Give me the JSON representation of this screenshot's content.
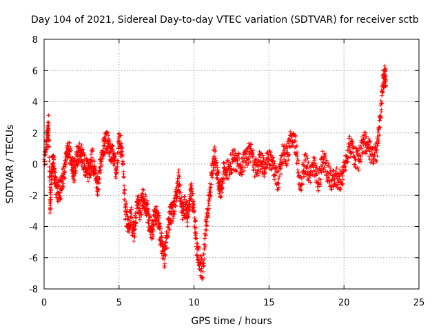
{
  "chart_data": {
    "type": "scatter",
    "title": "Day 104 of 2021, Sidereal Day-to-day VTEC variation (SDTVAR) for receiver sctb",
    "xlabel": "GPS time / hours",
    "ylabel": "SDTVAR / TECUs",
    "xlim": [
      0,
      25
    ],
    "ylim": [
      -8,
      8
    ],
    "xticks": [
      0,
      5,
      10,
      15,
      20,
      25
    ],
    "yticks": [
      -8,
      -6,
      -4,
      -2,
      0,
      2,
      4,
      6,
      8
    ],
    "grid": true,
    "marker": "+",
    "color": "#ff0000",
    "series": [
      {
        "name": "SDTVAR",
        "x": [
          0.0,
          0.2,
          0.3,
          0.4,
          0.5,
          0.6,
          0.7,
          0.9,
          1.1,
          1.3,
          1.5,
          1.7,
          1.9,
          2.0,
          2.2,
          2.4,
          2.6,
          2.8,
          3.0,
          3.2,
          3.4,
          3.6,
          3.8,
          4.0,
          4.2,
          4.4,
          4.6,
          4.8,
          5.0,
          5.2,
          5.4,
          5.6,
          5.8,
          6.0,
          6.2,
          6.4,
          6.6,
          6.8,
          7.0,
          7.2,
          7.4,
          7.6,
          7.8,
          8.0,
          8.2,
          8.4,
          8.6,
          8.8,
          9.0,
          9.2,
          9.4,
          9.6,
          9.8,
          10.0,
          10.2,
          10.4,
          10.6,
          10.8,
          11.0,
          11.2,
          11.4,
          11.6,
          11.8,
          12.0,
          12.3,
          12.6,
          12.9,
          13.2,
          13.5,
          13.8,
          14.1,
          14.4,
          14.7,
          15.0,
          15.3,
          15.6,
          15.9,
          16.2,
          16.5,
          16.8,
          17.1,
          17.4,
          17.7,
          18.0,
          18.3,
          18.6,
          18.9,
          19.2,
          19.5,
          19.8,
          20.1,
          20.4,
          20.7,
          21.0,
          21.3,
          21.6,
          21.9,
          22.2,
          22.4,
          22.6,
          22.7,
          22.8
        ],
        "y": [
          0.3,
          1.5,
          2.5,
          -2.8,
          -0.5,
          0.4,
          -0.9,
          -1.8,
          -1.6,
          -0.8,
          0.6,
          0.8,
          -0.2,
          -0.5,
          0.5,
          0.9,
          0.2,
          -0.3,
          -0.6,
          0.4,
          -0.4,
          -1.6,
          0.3,
          1.2,
          1.5,
          0.8,
          0.6,
          -0.3,
          1.5,
          0.8,
          -2.8,
          -3.8,
          -3.4,
          -4.6,
          -2.4,
          -3.0,
          -2.2,
          -2.6,
          -3.6,
          -4.4,
          -3.1,
          -3.6,
          -4.9,
          -6.1,
          -4.7,
          -3.2,
          -3.0,
          -2.0,
          -0.9,
          -3.1,
          -2.6,
          -3.4,
          -1.6,
          -3.1,
          -5.4,
          -6.4,
          -6.9,
          -3.9,
          -2.3,
          -0.6,
          0.8,
          -1.0,
          -1.6,
          -0.2,
          -0.3,
          0.3,
          0.2,
          -0.2,
          0.4,
          0.9,
          -0.4,
          0.2,
          -0.3,
          0.3,
          -0.1,
          -1.2,
          0.6,
          0.5,
          1.8,
          1.1,
          -1.6,
          0.2,
          -0.6,
          -0.1,
          -1.2,
          0.4,
          -0.5,
          -1.1,
          -0.8,
          -1.1,
          0.1,
          1.2,
          0.5,
          0.2,
          1.6,
          1.1,
          0.6,
          0.9,
          2.8,
          5.2,
          5.7,
          5.4
        ]
      }
    ]
  }
}
